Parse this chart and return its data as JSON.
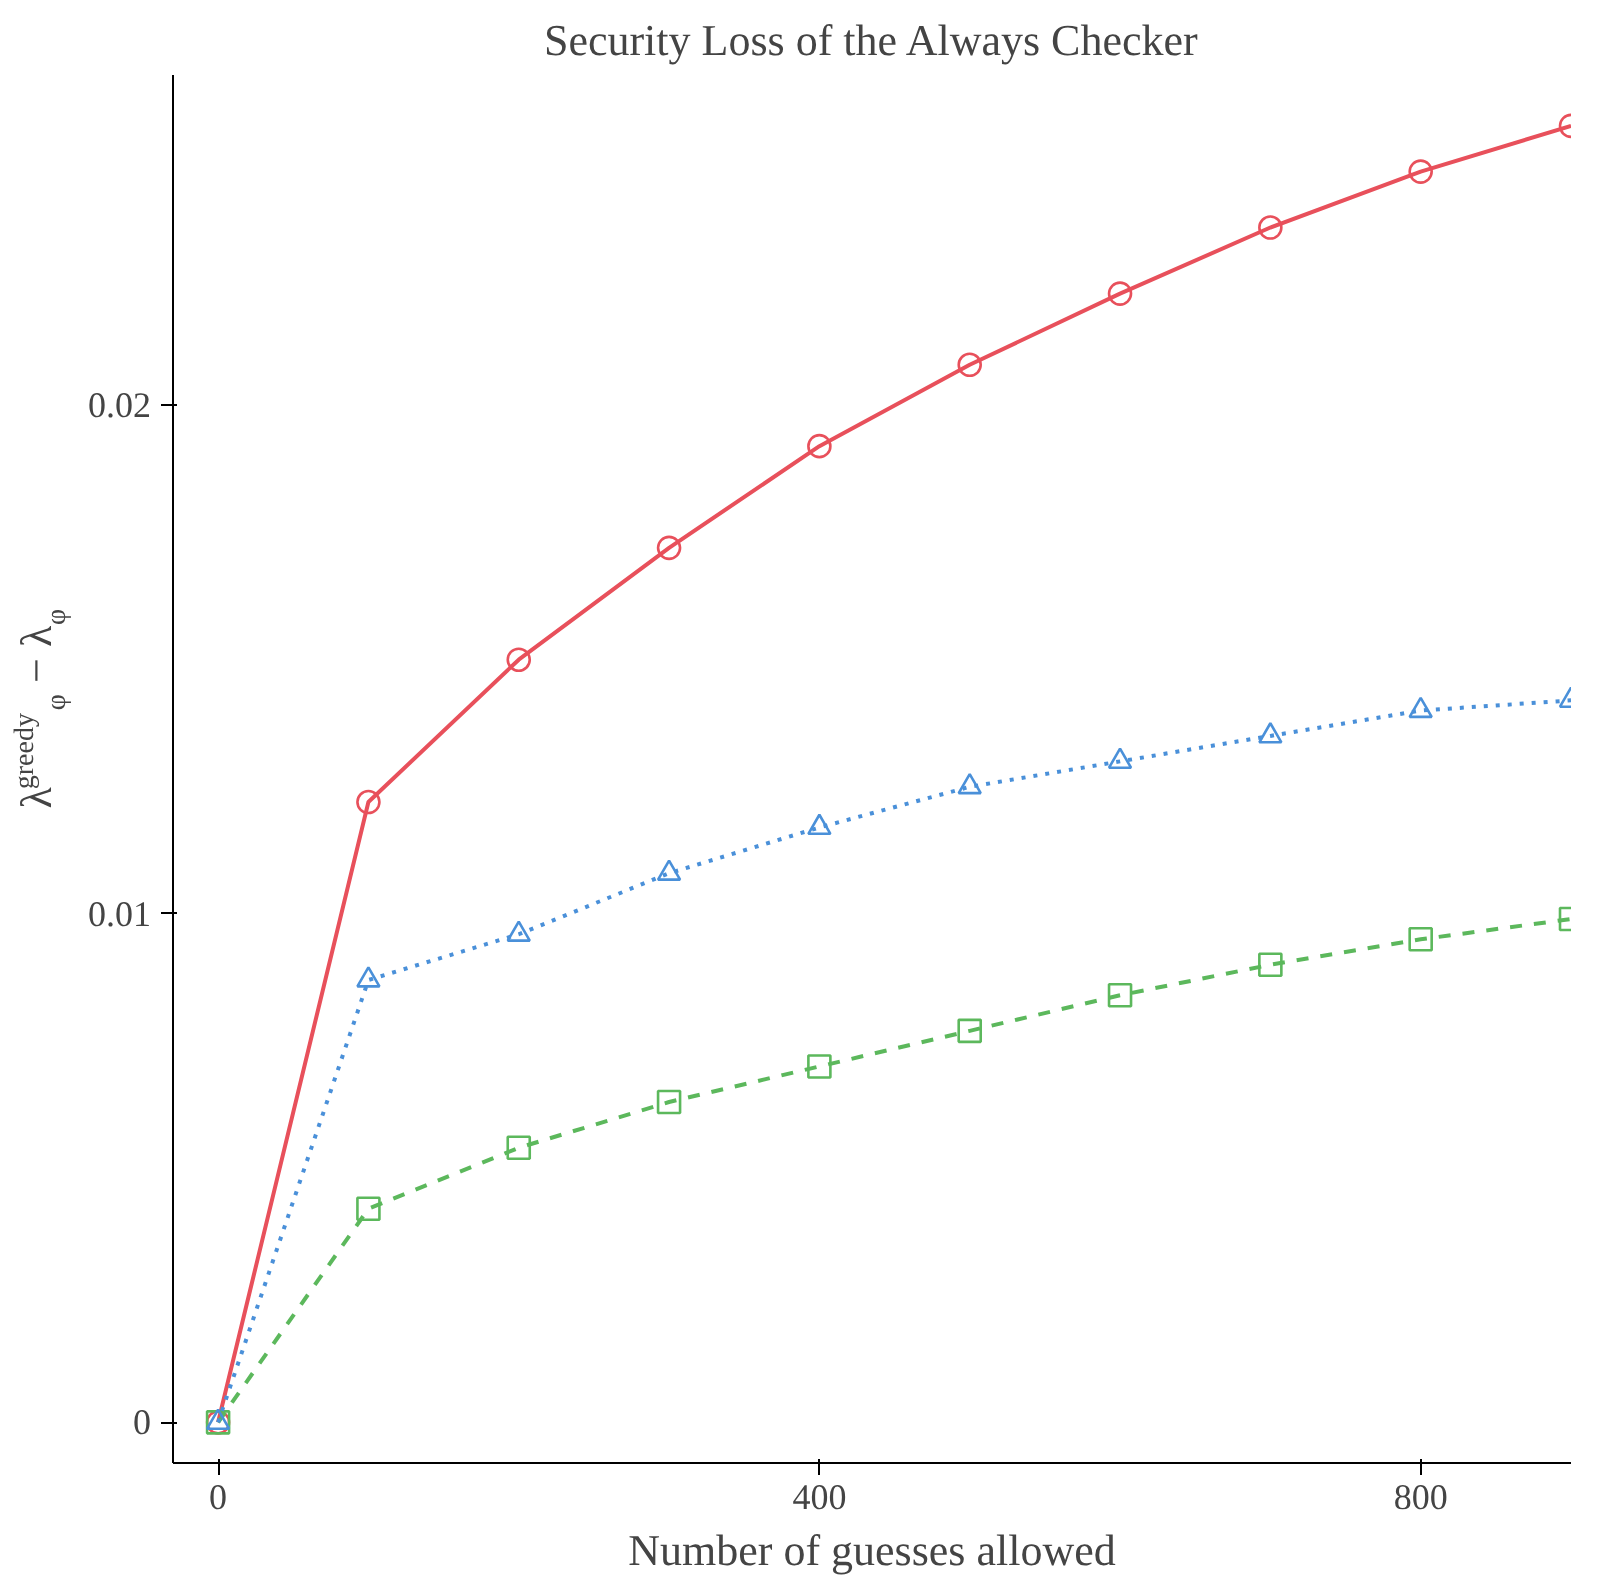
{
  "chart_data": {
    "type": "line",
    "title": "Security Loss of the Always Checker",
    "xlabel": "Number of guesses allowed",
    "ylabel": "λ$^{greedy}$$_{φ}$ − λ$_{φ}$",
    "x": [
      0,
      100,
      200,
      300,
      400,
      500,
      600,
      700,
      800,
      900
    ],
    "xlim": [
      -30,
      900
    ],
    "xticks": [
      0,
      400,
      800
    ],
    "ylim": [
      -0.0008,
      0.0265
    ],
    "yticks": [
      0,
      0.01,
      0.02
    ],
    "grid": false,
    "legend": false,
    "series": [
      {
        "color": "#e8505b",
        "marker": "circle",
        "line_style": "solid",
        "values": [
          0,
          0.0122,
          0.015,
          0.0172,
          0.0192,
          0.0208,
          0.0222,
          0.0235,
          0.0246,
          0.0255
        ]
      },
      {
        "color": "#5cb85c",
        "marker": "square",
        "line_style": "dashed",
        "values": [
          0,
          0.0042,
          0.0054,
          0.0063,
          0.007,
          0.0077,
          0.0084,
          0.009,
          0.0095,
          0.0099
        ]
      },
      {
        "color": "#4a90d9",
        "marker": "triangle",
        "line_style": "dotted",
        "values": [
          0,
          0.0087,
          0.0096,
          0.0108,
          0.0117,
          0.0125,
          0.013,
          0.0135,
          0.014,
          0.0142
        ]
      }
    ]
  }
}
